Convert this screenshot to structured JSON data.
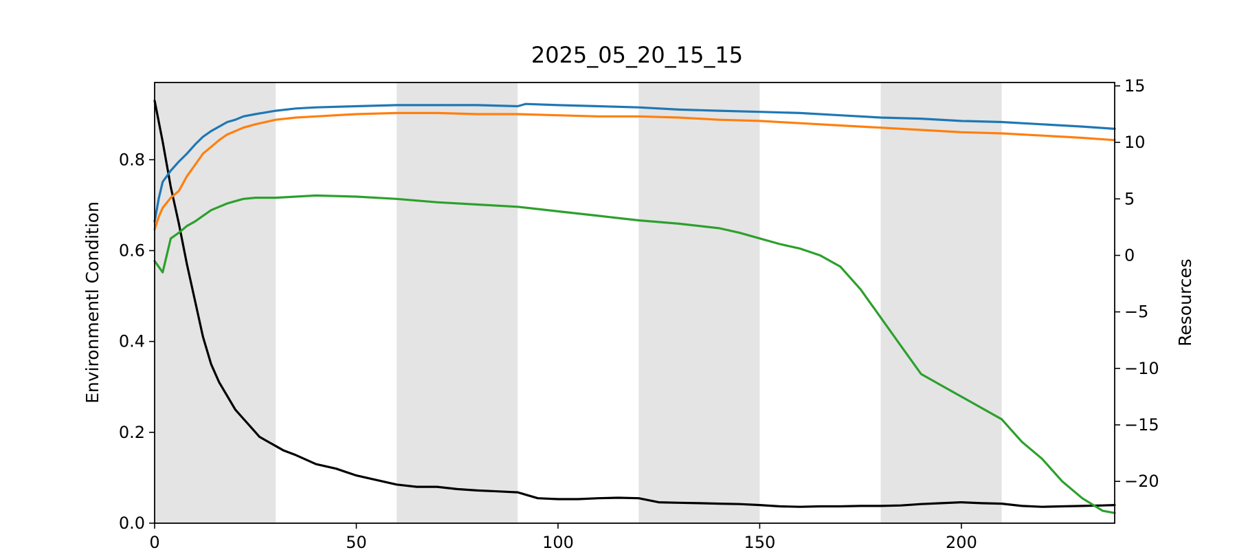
{
  "chart_data": {
    "type": "line",
    "title": "2025_05_20_15_15",
    "xlabel": "",
    "ylabel_left": "Environmentl Condition",
    "ylabel_right": "Resources",
    "xlim": [
      0,
      238
    ],
    "ylim_left": [
      0.0,
      0.97
    ],
    "ylim_right": [
      -23.7,
      15.3
    ],
    "xticks": [
      0,
      50,
      100,
      150,
      200
    ],
    "yticks_left": [
      0.0,
      0.2,
      0.4,
      0.6,
      0.8
    ],
    "yticks_left_labels": [
      "0.0",
      "0.2",
      "0.4",
      "0.6",
      "0.8"
    ],
    "yticks_right": [
      -20,
      -15,
      -10,
      -5,
      0,
      5,
      10,
      15
    ],
    "yticks_right_labels": [
      "−20",
      "−15",
      "−10",
      "−5",
      "0",
      "5",
      "10",
      "15"
    ],
    "shaded_bands": [
      [
        0,
        30
      ],
      [
        60,
        90
      ],
      [
        120,
        150
      ],
      [
        180,
        210
      ]
    ],
    "shade_color": "#e4e4e4",
    "grid": false,
    "series": [
      {
        "axis": "left",
        "color": "#000000",
        "x": [
          0,
          2,
          4,
          6,
          8,
          10,
          12,
          14,
          16,
          18,
          20,
          22,
          24,
          26,
          28,
          30,
          32,
          35,
          40,
          45,
          50,
          55,
          60,
          65,
          70,
          75,
          80,
          85,
          90,
          95,
          100,
          105,
          110,
          115,
          120,
          125,
          130,
          135,
          140,
          145,
          150,
          155,
          160,
          165,
          170,
          175,
          180,
          185,
          190,
          195,
          200,
          205,
          210,
          215,
          220,
          225,
          230,
          235,
          238
        ],
        "y": [
          0.93,
          0.84,
          0.74,
          0.66,
          0.57,
          0.49,
          0.41,
          0.35,
          0.31,
          0.28,
          0.25,
          0.23,
          0.21,
          0.19,
          0.18,
          0.17,
          0.16,
          0.15,
          0.13,
          0.12,
          0.105,
          0.095,
          0.085,
          0.08,
          0.08,
          0.075,
          0.072,
          0.07,
          0.068,
          0.055,
          0.053,
          0.053,
          0.055,
          0.056,
          0.055,
          0.046,
          0.045,
          0.044,
          0.043,
          0.042,
          0.04,
          0.037,
          0.036,
          0.037,
          0.037,
          0.038,
          0.038,
          0.039,
          0.042,
          0.044,
          0.046,
          0.044,
          0.043,
          0.038,
          0.036,
          0.037,
          0.038,
          0.039,
          0.04
        ]
      },
      {
        "axis": "right",
        "color": "#1f77b4",
        "x": [
          0,
          1,
          2,
          4,
          6,
          8,
          10,
          12,
          14,
          16,
          18,
          20,
          22,
          25,
          30,
          35,
          40,
          50,
          60,
          70,
          80,
          90,
          92,
          100,
          110,
          120,
          130,
          140,
          150,
          160,
          170,
          180,
          190,
          200,
          210,
          220,
          230,
          238
        ],
        "y": [
          3.0,
          5.0,
          6.5,
          7.5,
          8.3,
          9.0,
          9.8,
          10.5,
          11.0,
          11.4,
          11.8,
          12.0,
          12.3,
          12.5,
          12.8,
          13.0,
          13.1,
          13.2,
          13.3,
          13.3,
          13.3,
          13.2,
          13.4,
          13.3,
          13.2,
          13.1,
          12.9,
          12.8,
          12.7,
          12.6,
          12.4,
          12.2,
          12.1,
          11.9,
          11.8,
          11.6,
          11.4,
          11.2
        ]
      },
      {
        "axis": "right",
        "color": "#ff7f0e",
        "x": [
          0,
          1,
          2,
          4,
          6,
          8,
          10,
          12,
          14,
          16,
          18,
          20,
          22,
          25,
          30,
          35,
          40,
          50,
          60,
          70,
          80,
          90,
          100,
          110,
          120,
          130,
          140,
          150,
          160,
          170,
          180,
          190,
          200,
          210,
          220,
          230,
          238
        ],
        "y": [
          2.3,
          3.4,
          4.2,
          5.1,
          5.7,
          7.0,
          8.0,
          9.0,
          9.6,
          10.2,
          10.7,
          11.0,
          11.3,
          11.6,
          12.0,
          12.2,
          12.3,
          12.5,
          12.6,
          12.6,
          12.5,
          12.5,
          12.4,
          12.3,
          12.3,
          12.2,
          12.0,
          11.9,
          11.7,
          11.5,
          11.3,
          11.1,
          10.9,
          10.8,
          10.6,
          10.4,
          10.2
        ]
      },
      {
        "axis": "right",
        "color": "#2ca02c",
        "x": [
          0,
          2,
          4,
          6,
          8,
          10,
          12,
          14,
          16,
          18,
          20,
          22,
          25,
          30,
          35,
          40,
          50,
          60,
          70,
          80,
          90,
          100,
          110,
          120,
          130,
          140,
          145,
          150,
          155,
          160,
          165,
          170,
          175,
          180,
          185,
          190,
          195,
          200,
          205,
          210,
          215,
          220,
          225,
          230,
          235,
          238
        ],
        "y": [
          -0.5,
          -1.5,
          1.5,
          2.0,
          2.6,
          3.0,
          3.5,
          4.0,
          4.3,
          4.6,
          4.8,
          5.0,
          5.1,
          5.1,
          5.2,
          5.3,
          5.2,
          5.0,
          4.7,
          4.5,
          4.3,
          3.9,
          3.5,
          3.1,
          2.8,
          2.4,
          2.0,
          1.5,
          1.0,
          0.6,
          0.0,
          -1.0,
          -3.0,
          -5.5,
          -8.0,
          -10.5,
          -11.5,
          -12.5,
          -13.5,
          -14.5,
          -16.5,
          -18.0,
          -20.0,
          -21.5,
          -22.6,
          -22.8
        ]
      }
    ]
  }
}
